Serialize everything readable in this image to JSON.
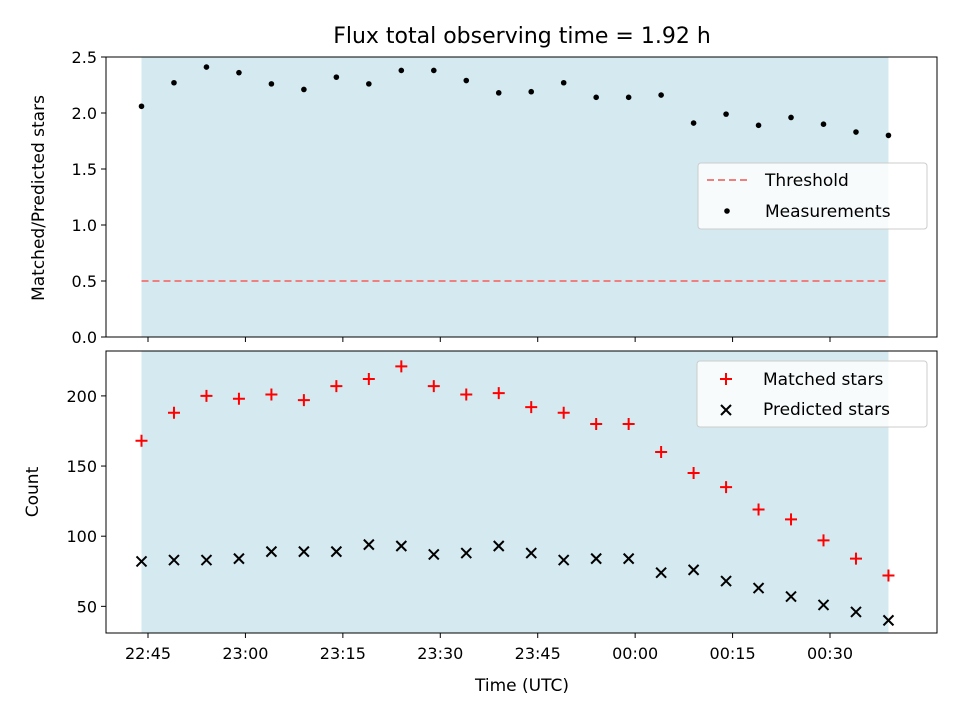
{
  "chart_data": {
    "type": "scatter",
    "title": "Flux total observing time = 1.92 h",
    "xlabel": "Time (UTC)",
    "time_ticks": [
      "22:45",
      "23:00",
      "23:15",
      "23:30",
      "23:45",
      "00:00",
      "00:15",
      "00:30"
    ],
    "times": [
      "22:44",
      "22:49",
      "22:54",
      "22:59",
      "23:04",
      "23:09",
      "23:14",
      "23:19",
      "23:24",
      "23:29",
      "23:34",
      "23:39",
      "23:44",
      "23:49",
      "23:54",
      "23:59",
      "00:04",
      "00:09",
      "00:14",
      "00:19",
      "00:24",
      "00:29",
      "00:34",
      "00:39"
    ],
    "observing_window": [
      "22:44",
      "00:39"
    ],
    "colors": {
      "shade": "#d4eaf0",
      "threshold": "#f08080",
      "matched": "#ff0000",
      "predicted": "#000000",
      "measurements": "#000000"
    },
    "top_panel": {
      "ylabel": "Matched/Predicted stars",
      "ylim": [
        0,
        2.5
      ],
      "yticks": [
        "0.0",
        "0.5",
        "1.0",
        "1.5",
        "2.0",
        "2.5"
      ],
      "threshold": 0.5,
      "series": [
        {
          "name": "Threshold",
          "style": "dashed-line"
        },
        {
          "name": "Measurements",
          "style": "dot",
          "values": [
            2.06,
            2.27,
            2.41,
            2.36,
            2.26,
            2.21,
            2.32,
            2.26,
            2.38,
            2.38,
            2.29,
            2.18,
            2.19,
            2.27,
            2.14,
            2.14,
            2.16,
            1.91,
            1.99,
            1.89,
            1.96,
            1.9,
            1.83,
            1.8
          ]
        }
      ],
      "legend_location": "center-right"
    },
    "bottom_panel": {
      "ylabel": "Count",
      "ylim": [
        31,
        232
      ],
      "yticks": [
        "50",
        "100",
        "150",
        "200"
      ],
      "series": [
        {
          "name": "Matched stars",
          "marker": "+",
          "values": [
            168,
            188,
            200,
            198,
            201,
            197,
            207,
            212,
            221,
            207,
            201,
            202,
            192,
            188,
            180,
            180,
            160,
            145,
            135,
            119,
            112,
            97,
            84,
            72
          ]
        },
        {
          "name": "Predicted stars",
          "marker": "x",
          "values": [
            82,
            83,
            83,
            84,
            89,
            89,
            89,
            94,
            93,
            87,
            88,
            93,
            88,
            83,
            84,
            84,
            74,
            76,
            68,
            63,
            57,
            51,
            46,
            40
          ]
        }
      ],
      "legend_location": "top-right"
    }
  }
}
